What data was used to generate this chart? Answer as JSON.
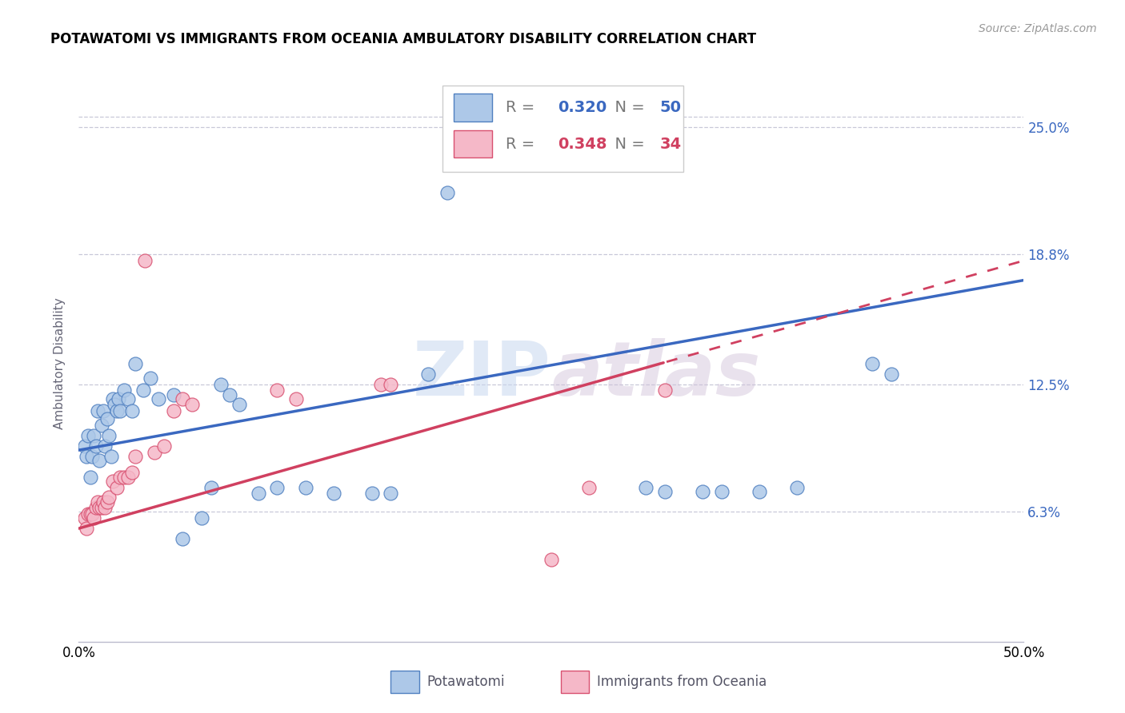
{
  "title": "POTAWATOMI VS IMMIGRANTS FROM OCEANIA AMBULATORY DISABILITY CORRELATION CHART",
  "source": "Source: ZipAtlas.com",
  "ylabel": "Ambulatory Disability",
  "xlim": [
    0.0,
    0.5
  ],
  "ylim": [
    0.0,
    0.27
  ],
  "ytick_positions": [
    0.063,
    0.125,
    0.188,
    0.25
  ],
  "ytick_labels": [
    "6.3%",
    "12.5%",
    "18.8%",
    "25.0%"
  ],
  "legend1_r": "0.320",
  "legend1_n": "50",
  "legend2_r": "0.348",
  "legend2_n": "34",
  "blue_fill": "#adc8e8",
  "blue_edge": "#5080c0",
  "pink_fill": "#f5b8c8",
  "pink_edge": "#d85070",
  "blue_line": "#3a68c0",
  "pink_line": "#d04060",
  "grid_color": "#c8c8d8",
  "watermark": "ZIPatlas",
  "blue_x": [
    0.003,
    0.004,
    0.005,
    0.006,
    0.007,
    0.008,
    0.009,
    0.01,
    0.011,
    0.012,
    0.013,
    0.014,
    0.015,
    0.016,
    0.017,
    0.018,
    0.019,
    0.02,
    0.021,
    0.022,
    0.024,
    0.026,
    0.028,
    0.03,
    0.034,
    0.038,
    0.042,
    0.05,
    0.055,
    0.065,
    0.07,
    0.075,
    0.08,
    0.085,
    0.095,
    0.105,
    0.12,
    0.135,
    0.155,
    0.165,
    0.185,
    0.195,
    0.3,
    0.31,
    0.33,
    0.34,
    0.36,
    0.38,
    0.42,
    0.43
  ],
  "blue_y": [
    0.095,
    0.09,
    0.1,
    0.08,
    0.09,
    0.1,
    0.095,
    0.112,
    0.088,
    0.105,
    0.112,
    0.095,
    0.108,
    0.1,
    0.09,
    0.118,
    0.115,
    0.112,
    0.118,
    0.112,
    0.122,
    0.118,
    0.112,
    0.135,
    0.122,
    0.128,
    0.118,
    0.12,
    0.05,
    0.06,
    0.075,
    0.125,
    0.12,
    0.115,
    0.072,
    0.075,
    0.075,
    0.072,
    0.072,
    0.072,
    0.13,
    0.218,
    0.075,
    0.073,
    0.073,
    0.073,
    0.073,
    0.075,
    0.135,
    0.13
  ],
  "pink_x": [
    0.003,
    0.004,
    0.005,
    0.006,
    0.007,
    0.008,
    0.009,
    0.01,
    0.011,
    0.012,
    0.013,
    0.014,
    0.015,
    0.016,
    0.018,
    0.02,
    0.022,
    0.024,
    0.026,
    0.028,
    0.03,
    0.035,
    0.04,
    0.045,
    0.05,
    0.055,
    0.06,
    0.105,
    0.115,
    0.16,
    0.165,
    0.25,
    0.27,
    0.31
  ],
  "pink_y": [
    0.06,
    0.055,
    0.062,
    0.062,
    0.062,
    0.06,
    0.065,
    0.068,
    0.065,
    0.065,
    0.068,
    0.065,
    0.068,
    0.07,
    0.078,
    0.075,
    0.08,
    0.08,
    0.08,
    0.082,
    0.09,
    0.185,
    0.092,
    0.095,
    0.112,
    0.118,
    0.115,
    0.122,
    0.118,
    0.125,
    0.125,
    0.04,
    0.075,
    0.122
  ]
}
